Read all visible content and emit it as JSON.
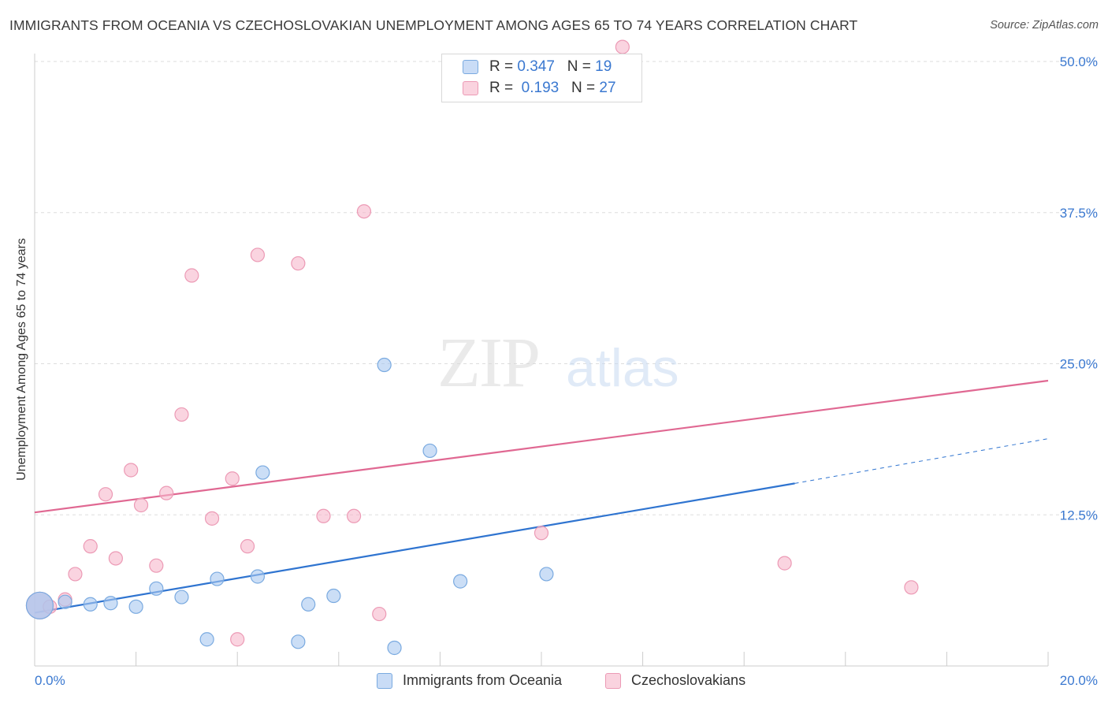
{
  "title": "IMMIGRANTS FROM OCEANIA VS CZECHOSLOVAKIAN UNEMPLOYMENT AMONG AGES 65 TO 74 YEARS CORRELATION CHART",
  "source": "Source: ZipAtlas.com",
  "watermark": {
    "zip": "ZIP",
    "atlas": "atlas"
  },
  "legend": {
    "rows": [
      {
        "r_label": "R = ",
        "r_value": "0.347",
        "n_label": "N = ",
        "n_value": "19"
      },
      {
        "r_label": "R = ",
        "r_value": "0.193",
        "n_label": "N = ",
        "n_value": "27"
      }
    ]
  },
  "chart_data": {
    "type": "scatter",
    "title": "IMMIGRANTS FROM OCEANIA VS CZECHOSLOVAKIAN UNEMPLOYMENT AMONG AGES 65 TO 74 YEARS CORRELATION CHART",
    "xlabel": "",
    "ylabel": "Unemployment Among Ages 65 to 74 years",
    "xlim": [
      0,
      20
    ],
    "ylim": [
      0,
      50
    ],
    "x_tick_labels": [
      "0.0%",
      "20.0%"
    ],
    "y_ticks": [
      12.5,
      25.0,
      37.5,
      50.0
    ],
    "y_tick_labels": [
      "12.5%",
      "25.0%",
      "37.5%",
      "50.0%"
    ],
    "grid": true,
    "legend_position": "top-center",
    "colors": {
      "oceania_fill": "#a8c8f0",
      "oceania_stroke": "#7aaae0",
      "oceania_line": "#2f74d0",
      "czech_fill": "#f6b8cc",
      "czech_stroke": "#ec9ab5",
      "czech_line": "#e06892",
      "grid": "#dddddd",
      "tick_text": "#3a78d0"
    },
    "series": [
      {
        "name": "Immigrants from Oceania",
        "color": "#a8c8f0",
        "points": [
          [
            0.1,
            5.0,
            "large"
          ],
          [
            0.6,
            5.3
          ],
          [
            1.1,
            5.1
          ],
          [
            1.5,
            5.2
          ],
          [
            2.0,
            4.9
          ],
          [
            2.4,
            6.4
          ],
          [
            2.9,
            5.7
          ],
          [
            3.4,
            2.2
          ],
          [
            3.6,
            7.2
          ],
          [
            4.4,
            7.4
          ],
          [
            4.5,
            16.0
          ],
          [
            5.2,
            2.0
          ],
          [
            5.4,
            5.1
          ],
          [
            5.9,
            5.8
          ],
          [
            6.9,
            24.9
          ],
          [
            7.1,
            1.5
          ],
          [
            7.8,
            17.8
          ],
          [
            8.4,
            7.0
          ],
          [
            10.1,
            7.6
          ]
        ],
        "trend": {
          "x0": 0,
          "y0": 4.4,
          "x1": 15.0,
          "y1": 15.1,
          "dash_x1": 20.0,
          "dash_y1": 18.8
        }
      },
      {
        "name": "Czechoslovakians",
        "color": "#f6b8cc",
        "points": [
          [
            0.1,
            5.0,
            "large"
          ],
          [
            0.3,
            4.9
          ],
          [
            0.6,
            5.5
          ],
          [
            0.8,
            7.6
          ],
          [
            1.1,
            9.9
          ],
          [
            1.4,
            14.2
          ],
          [
            1.6,
            8.9
          ],
          [
            1.9,
            16.2
          ],
          [
            2.1,
            13.3
          ],
          [
            2.4,
            8.3
          ],
          [
            2.6,
            14.3
          ],
          [
            2.9,
            20.8
          ],
          [
            3.1,
            32.3
          ],
          [
            3.5,
            12.2
          ],
          [
            3.9,
            15.5
          ],
          [
            4.0,
            2.2
          ],
          [
            4.2,
            9.9
          ],
          [
            4.4,
            34.0
          ],
          [
            5.2,
            33.3
          ],
          [
            5.7,
            12.4
          ],
          [
            6.3,
            12.4
          ],
          [
            6.5,
            37.6
          ],
          [
            6.8,
            4.3
          ],
          [
            10.0,
            11.0
          ],
          [
            14.8,
            8.5
          ],
          [
            17.3,
            6.5
          ],
          [
            11.6,
            51.2
          ]
        ],
        "trend": {
          "x0": 0,
          "y0": 12.7,
          "x1": 20.0,
          "y1": 23.6
        }
      }
    ]
  }
}
